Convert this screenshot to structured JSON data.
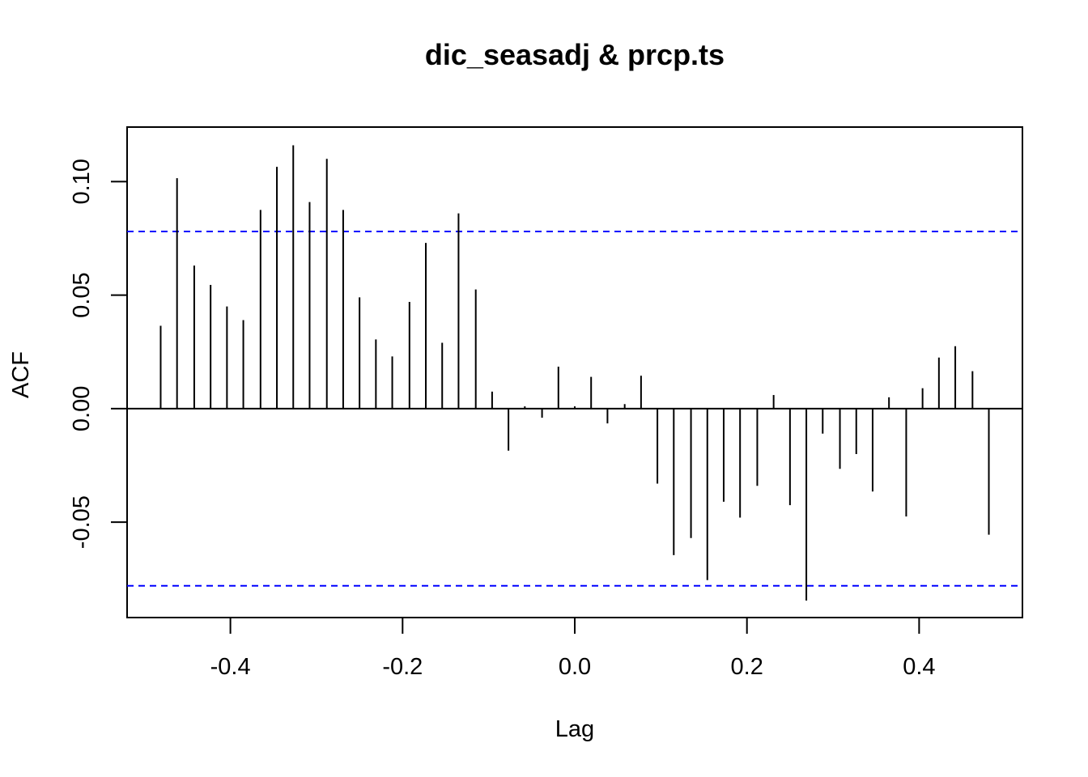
{
  "chart_data": {
    "type": "bar",
    "title": "dic_seasadj & prcp.ts",
    "xlabel": "Lag",
    "ylabel": "ACF",
    "xlim": [
      -0.52,
      0.52
    ],
    "ylim": [
      -0.092,
      0.124
    ],
    "x_ticks": [
      -0.4,
      -0.2,
      0.0,
      0.2,
      0.4
    ],
    "x_tick_labels": [
      "-0.4",
      "-0.2",
      "0.0",
      "0.2",
      "0.4"
    ],
    "y_ticks": [
      -0.05,
      0.0,
      0.05,
      0.1
    ],
    "y_tick_labels": [
      "-0.05",
      "0.00",
      "0.05",
      "0.10"
    ],
    "box": true,
    "grid": false,
    "confidence_limit": 0.078,
    "confidence_color": "#0000ff",
    "series": [
      {
        "x": [
          -0.481,
          -0.462,
          -0.442,
          -0.423,
          -0.404,
          -0.385,
          -0.365,
          -0.346,
          -0.327,
          -0.308,
          -0.288,
          -0.269,
          -0.25,
          -0.231,
          -0.212,
          -0.192,
          -0.173,
          -0.154,
          -0.135,
          -0.115,
          -0.096,
          -0.077,
          -0.058,
          -0.038,
          -0.019,
          0.0,
          0.019,
          0.038,
          0.058,
          0.077,
          0.096,
          0.115,
          0.135,
          0.154,
          0.173,
          0.192,
          0.212,
          0.231,
          0.25,
          0.269,
          0.288,
          0.308,
          0.327,
          0.346,
          0.365,
          0.385,
          0.404,
          0.423,
          0.442,
          0.462,
          0.481
        ],
        "values": [
          0.0365,
          0.1015,
          0.063,
          0.0545,
          0.045,
          0.039,
          0.0875,
          0.1065,
          0.116,
          0.091,
          0.11,
          0.0875,
          0.049,
          0.0305,
          0.023,
          0.047,
          0.073,
          0.029,
          0.086,
          0.0525,
          0.0075,
          -0.0185,
          0.001,
          -0.004,
          0.0185,
          0.001,
          0.014,
          -0.0065,
          0.002,
          0.0145,
          -0.033,
          -0.0645,
          -0.057,
          -0.0755,
          -0.041,
          -0.048,
          -0.034,
          0.006,
          -0.0425,
          -0.0845,
          -0.011,
          -0.0265,
          -0.02,
          -0.0365,
          0.005,
          -0.0475,
          0.009,
          0.0225,
          0.0275,
          0.0165,
          -0.0555
        ]
      }
    ]
  }
}
